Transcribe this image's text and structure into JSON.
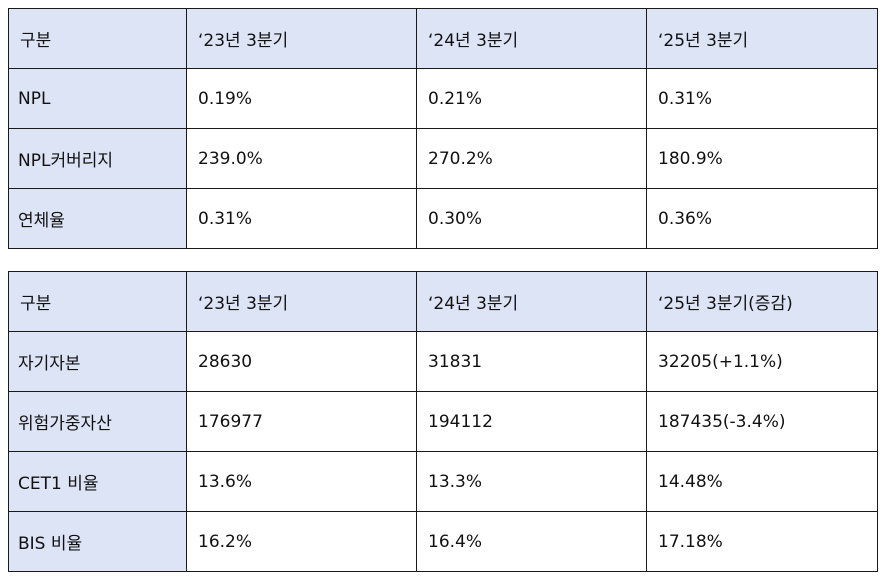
{
  "asset_quality_table": {
    "headers": [
      "구분",
      "‘23년 3분기",
      "‘24년 3분기",
      "‘25년 3분기"
    ],
    "rows": [
      {
        "label": "NPL",
        "values": [
          "0.19%",
          "0.21%",
          "0.31%"
        ]
      },
      {
        "label": "NPL커버리지",
        "values": [
          "239.0%",
          "270.2%",
          "180.9%"
        ]
      },
      {
        "label": "연체율",
        "values": [
          "0.31%",
          "0.30%",
          "0.36%"
        ]
      }
    ]
  },
  "capital_table": {
    "headers": [
      "구분",
      "‘23년 3분기",
      "‘24년 3분기",
      "‘25년 3분기(증감)"
    ],
    "rows": [
      {
        "label": "자기자본",
        "values": [
          "28630",
          "31831",
          "32205(+1.1%)"
        ]
      },
      {
        "label": "위험가중자산",
        "values": [
          "176977",
          "194112",
          "187435(-3.4%)"
        ]
      },
      {
        "label": "CET1 비율",
        "values": [
          "13.6%",
          "13.3%",
          "14.48%"
        ]
      },
      {
        "label": "BIS 비율",
        "values": [
          "16.2%",
          "16.4%",
          "17.18%"
        ]
      }
    ]
  },
  "colors": {
    "header_fill": "#dde4f5",
    "border": "#1a1a1a"
  }
}
